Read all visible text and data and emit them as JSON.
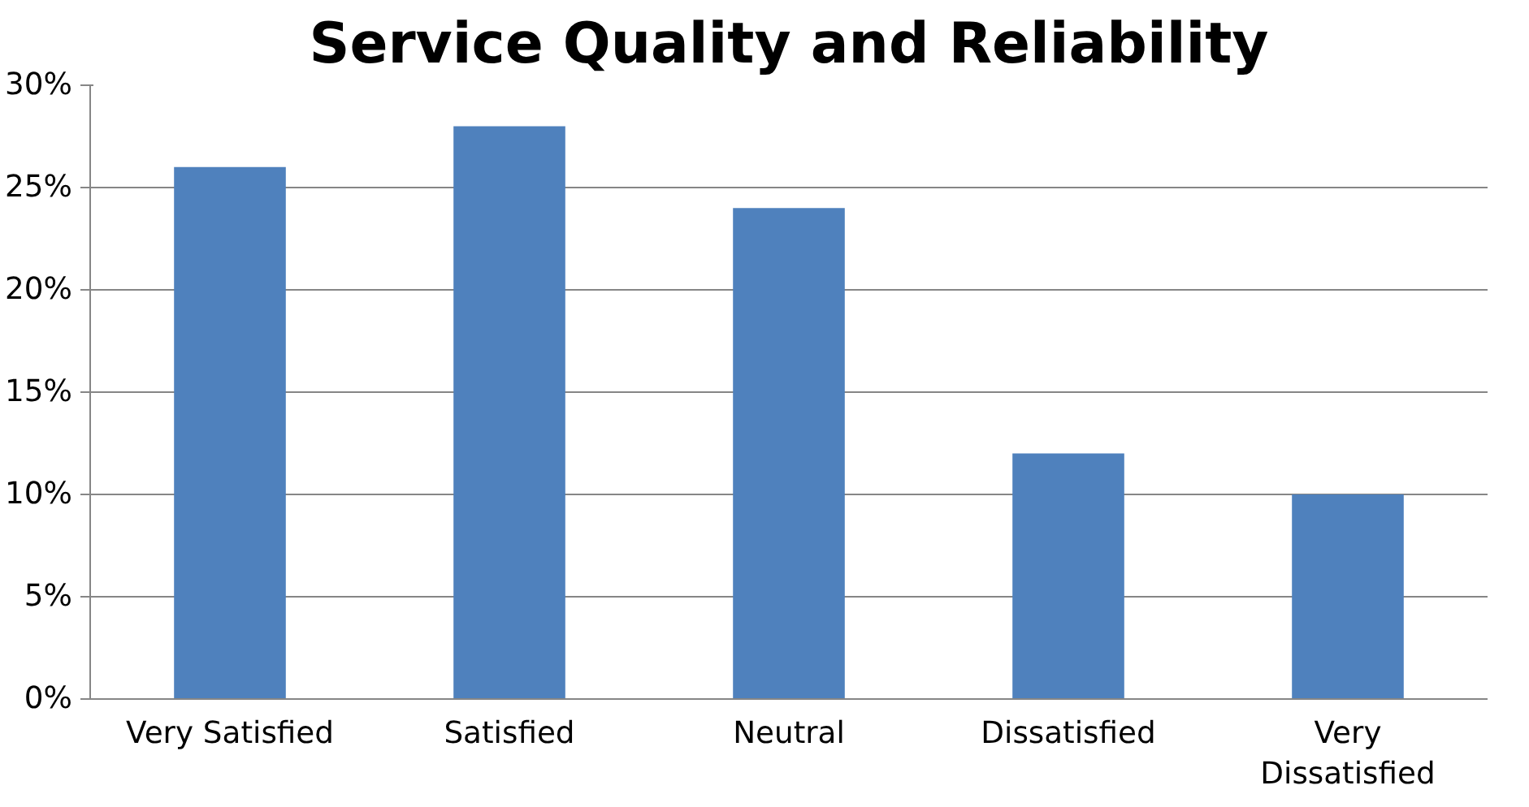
{
  "chart_data": {
    "type": "bar",
    "title": "Service Quality and Reliability",
    "categories": [
      "Very Satisfied",
      "Satisfied",
      "Neutral",
      "Dissatisfied",
      "Very Dissatisfied"
    ],
    "values": [
      26,
      28,
      24,
      12,
      10
    ],
    "color": "#4f81bd",
    "ylim": [
      0,
      30
    ],
    "yticks": [
      {
        "value": 0,
        "label": "0%"
      },
      {
        "value": 5,
        "label": "5%"
      },
      {
        "value": 10,
        "label": "10%"
      },
      {
        "value": 15,
        "label": "15%"
      },
      {
        "value": 20,
        "label": "20%"
      },
      {
        "value": 25,
        "label": "25%"
      },
      {
        "value": 30,
        "label": "30%"
      }
    ],
    "grid": "y"
  }
}
